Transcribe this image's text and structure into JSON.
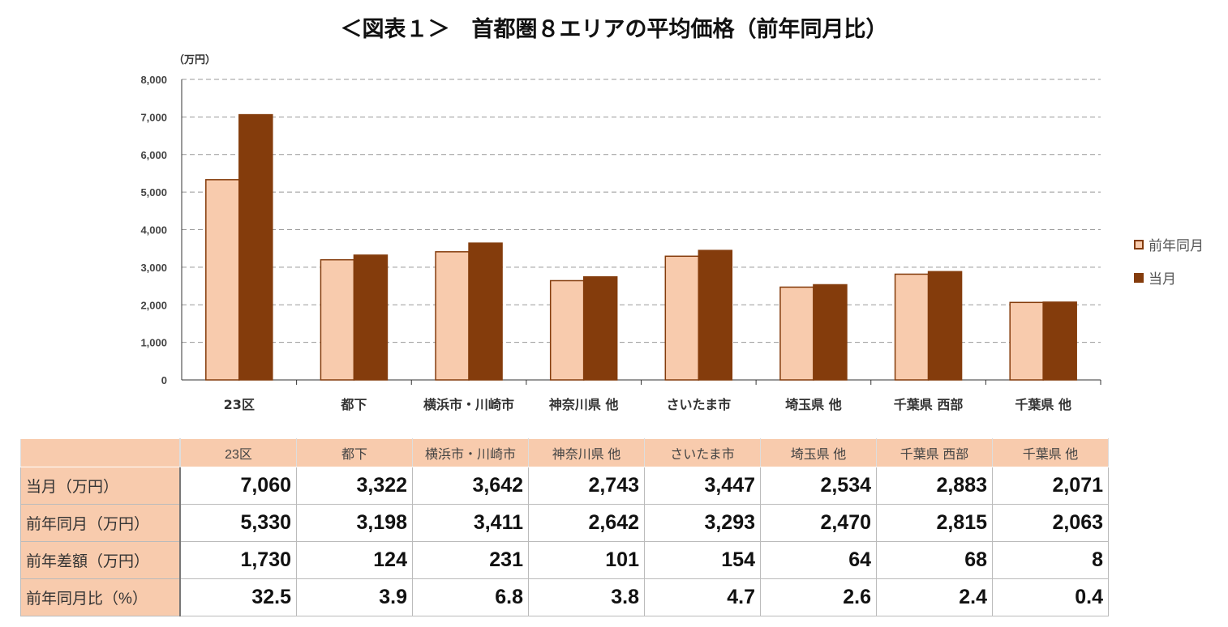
{
  "chart_data": {
    "type": "bar",
    "title": "＜図表１＞　首都圏８エリアの平均価格（前年同月比）",
    "ylabel": "（万円）",
    "ylim": [
      0,
      8000
    ],
    "yticks": [
      "0",
      "1,000",
      "2,000",
      "3,000",
      "4,000",
      "5,000",
      "6,000",
      "7,000",
      "8,000"
    ],
    "grid": true,
    "legend": "right",
    "categories": [
      "23区",
      "都下",
      "横浜市・川崎市",
      "神奈川県 他",
      "さいたま市",
      "埼玉県 他",
      "千葉県 西部",
      "千葉県 他"
    ],
    "series": [
      {
        "name": "前年同月",
        "values": [
          5330,
          3198,
          3411,
          2642,
          3293,
          2470,
          2815,
          2063
        ],
        "color": "#F8CBAD",
        "border": "#843C0C"
      },
      {
        "name": "当月",
        "values": [
          7060,
          3322,
          3642,
          2743,
          3447,
          2534,
          2883,
          2071
        ],
        "color": "#843C0C"
      }
    ]
  },
  "table": {
    "rows": [
      {
        "label": "当月（万円）",
        "values": [
          "7,060",
          "3,322",
          "3,642",
          "2,743",
          "3,447",
          "2,534",
          "2,883",
          "2,071"
        ]
      },
      {
        "label": "前年同月（万円）",
        "values": [
          "5,330",
          "3,198",
          "3,411",
          "2,642",
          "3,293",
          "2,470",
          "2,815",
          "2,063"
        ]
      },
      {
        "label": "前年差額（万円）",
        "values": [
          "1,730",
          "124",
          "231",
          "101",
          "154",
          "64",
          "68",
          "8"
        ]
      },
      {
        "label": "前年同月比（%）",
        "values": [
          "32.5",
          "3.9",
          "6.8",
          "3.8",
          "4.7",
          "2.6",
          "2.4",
          "0.4"
        ]
      }
    ]
  }
}
